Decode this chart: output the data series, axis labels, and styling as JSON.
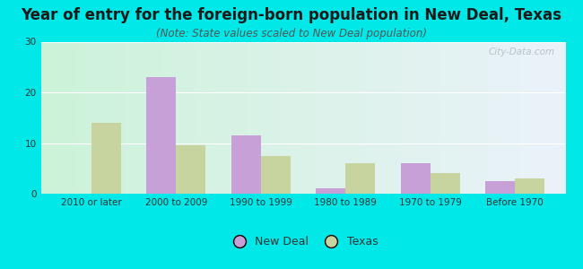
{
  "title": "Year of entry for the foreign-born population in New Deal, Texas",
  "subtitle": "(Note: State values scaled to New Deal population)",
  "categories": [
    "2010 or later",
    "2000 to 2009",
    "1990 to 1999",
    "1980 to 1989",
    "1970 to 1979",
    "Before 1970"
  ],
  "new_deal": [
    0,
    23,
    11.5,
    1,
    6,
    2.5
  ],
  "texas": [
    14,
    9.5,
    7.5,
    6,
    4,
    3
  ],
  "new_deal_color": "#c8a0d8",
  "texas_color": "#c8d4a0",
  "background_outer": "#00e8e8",
  "gradient_topleft": [
    0.8,
    0.95,
    0.85
  ],
  "gradient_bottomright": [
    0.92,
    0.95,
    0.98
  ],
  "ylim": [
    0,
    30
  ],
  "yticks": [
    0,
    10,
    20,
    30
  ],
  "bar_width": 0.35,
  "legend_labels": [
    "New Deal",
    "Texas"
  ],
  "title_fontsize": 12,
  "subtitle_fontsize": 8.5,
  "tick_fontsize": 7.5,
  "legend_fontsize": 9,
  "watermark": "City-Data.com"
}
